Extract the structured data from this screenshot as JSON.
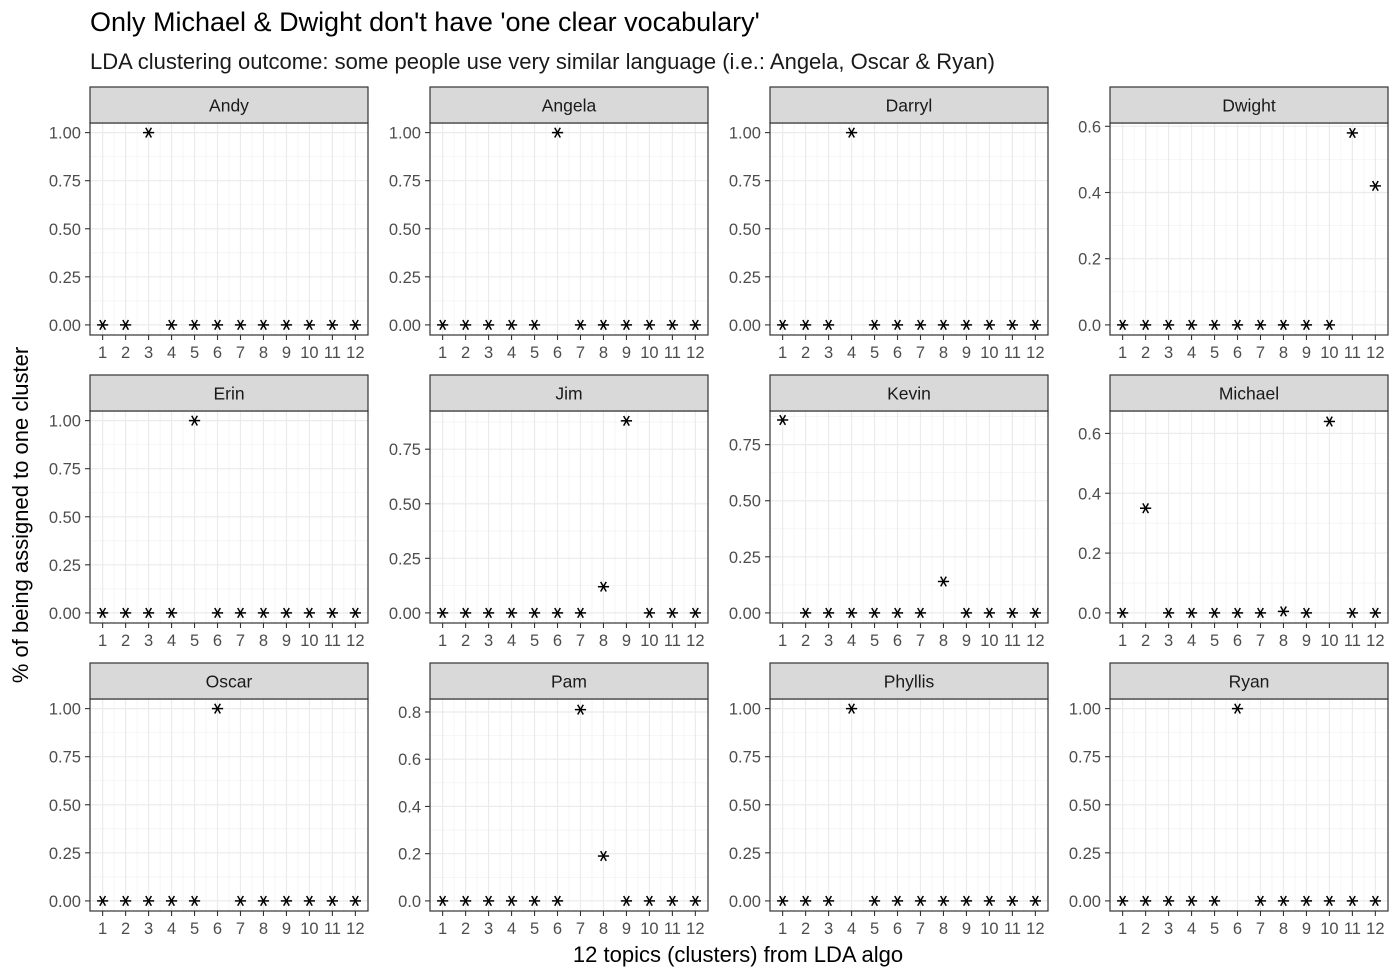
{
  "chart_data": {
    "type": "scatter",
    "title": "Only Michael & Dwight don't have 'one clear vocabulary'",
    "subtitle": "LDA clustering outcome: some people use very similar language (i.e.: Angela, Oscar & Ryan)",
    "xlabel": "12 topics (clusters) from LDA algo",
    "ylabel": "% of being assigned to one cluster",
    "x_ticks": [
      "1",
      "2",
      "3",
      "4",
      "5",
      "6",
      "7",
      "8",
      "9",
      "10",
      "11",
      "12"
    ],
    "marker": "asterisk",
    "grid": true,
    "facets": [
      {
        "name": "Andy",
        "ylim": [
          0,
          1.05
        ],
        "y_ticks": [
          "0.00",
          "0.25",
          "0.50",
          "0.75",
          "1.00"
        ],
        "values": [
          0,
          0,
          1.0,
          0,
          0,
          0,
          0,
          0,
          0,
          0,
          0,
          0
        ]
      },
      {
        "name": "Angela",
        "ylim": [
          0,
          1.05
        ],
        "y_ticks": [
          "0.00",
          "0.25",
          "0.50",
          "0.75",
          "1.00"
        ],
        "values": [
          0,
          0,
          0,
          0,
          0,
          1.0,
          0,
          0,
          0,
          0,
          0,
          0
        ]
      },
      {
        "name": "Darryl",
        "ylim": [
          0,
          1.05
        ],
        "y_ticks": [
          "0.00",
          "0.25",
          "0.50",
          "0.75",
          "1.00"
        ],
        "values": [
          0,
          0,
          0,
          1.0,
          0,
          0,
          0,
          0,
          0,
          0,
          0,
          0
        ]
      },
      {
        "name": "Dwight",
        "ylim": [
          0,
          0.61
        ],
        "y_ticks": [
          "0.0",
          "0.2",
          "0.4",
          "0.6"
        ],
        "values": [
          0,
          0,
          0,
          0,
          0,
          0,
          0,
          0,
          0,
          0,
          0.58,
          0.42
        ]
      },
      {
        "name": "Erin",
        "ylim": [
          0,
          1.05
        ],
        "y_ticks": [
          "0.00",
          "0.25",
          "0.50",
          "0.75",
          "1.00"
        ],
        "values": [
          0,
          0,
          0,
          0,
          1.0,
          0,
          0,
          0,
          0,
          0,
          0,
          0
        ]
      },
      {
        "name": "Jim",
        "ylim": [
          0,
          0.925
        ],
        "y_ticks": [
          "0.00",
          "0.25",
          "0.50",
          "0.75"
        ],
        "values": [
          0,
          0,
          0,
          0,
          0,
          0,
          0,
          0.12,
          0.88,
          0,
          0,
          0
        ]
      },
      {
        "name": "Kevin",
        "ylim": [
          0,
          0.9
        ],
        "y_ticks": [
          "0.00",
          "0.25",
          "0.50",
          "0.75"
        ],
        "values": [
          0.86,
          0,
          0,
          0,
          0,
          0,
          0,
          0.14,
          0,
          0,
          0,
          0
        ]
      },
      {
        "name": "Michael",
        "ylim": [
          0,
          0.675
        ],
        "y_ticks": [
          "0.0",
          "0.2",
          "0.4",
          "0.6"
        ],
        "values": [
          0,
          0.35,
          0,
          0,
          0,
          0,
          0,
          0.005,
          0,
          0.64,
          0,
          0
        ]
      },
      {
        "name": "Oscar",
        "ylim": [
          0,
          1.05
        ],
        "y_ticks": [
          "0.00",
          "0.25",
          "0.50",
          "0.75",
          "1.00"
        ],
        "values": [
          0,
          0,
          0,
          0,
          0,
          1.0,
          0,
          0,
          0,
          0,
          0,
          0
        ]
      },
      {
        "name": "Pam",
        "ylim": [
          0,
          0.855
        ],
        "y_ticks": [
          "0.0",
          "0.2",
          "0.4",
          "0.6",
          "0.8"
        ],
        "values": [
          0,
          0,
          0,
          0,
          0,
          0,
          0.81,
          0.19,
          0,
          0,
          0,
          0
        ]
      },
      {
        "name": "Phyllis",
        "ylim": [
          0,
          1.05
        ],
        "y_ticks": [
          "0.00",
          "0.25",
          "0.50",
          "0.75",
          "1.00"
        ],
        "values": [
          0,
          0,
          0,
          1.0,
          0,
          0,
          0,
          0,
          0,
          0,
          0,
          0
        ]
      },
      {
        "name": "Ryan",
        "ylim": [
          0,
          1.05
        ],
        "y_ticks": [
          "0.00",
          "0.25",
          "0.50",
          "0.75",
          "1.00"
        ],
        "values": [
          0,
          0,
          0,
          0,
          0,
          1.0,
          0,
          0,
          0,
          0,
          0,
          0
        ]
      }
    ]
  }
}
